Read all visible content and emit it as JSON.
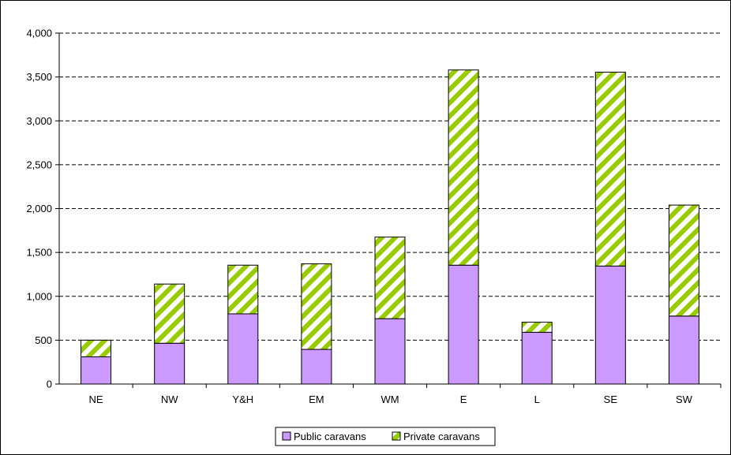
{
  "chart_data": {
    "type": "bar",
    "stacked": true,
    "categories": [
      "NE",
      "NW",
      "Y&H",
      "EM",
      "WM",
      "E",
      "L",
      "SE",
      "SW"
    ],
    "series": [
      {
        "name": "Public caravans",
        "color": "#cc99ff",
        "pattern": "solid",
        "values": [
          310,
          465,
          800,
          395,
          745,
          1355,
          590,
          1345,
          775
        ]
      },
      {
        "name": "Private caravans",
        "color": "#99cc00",
        "pattern": "diagonal-stripes",
        "values": [
          190,
          675,
          555,
          975,
          930,
          2225,
          115,
          2210,
          1265
        ]
      }
    ],
    "y_ticks": [
      "0",
      "500",
      "1,000",
      "1,500",
      "2,000",
      "2,500",
      "3,000",
      "3,500",
      "4,000"
    ],
    "ylim": [
      0,
      4000
    ],
    "y_tick_step": 500,
    "grid": "horizontal dashed",
    "legend_position": "bottom",
    "title": "",
    "xlabel": "",
    "ylabel": ""
  }
}
